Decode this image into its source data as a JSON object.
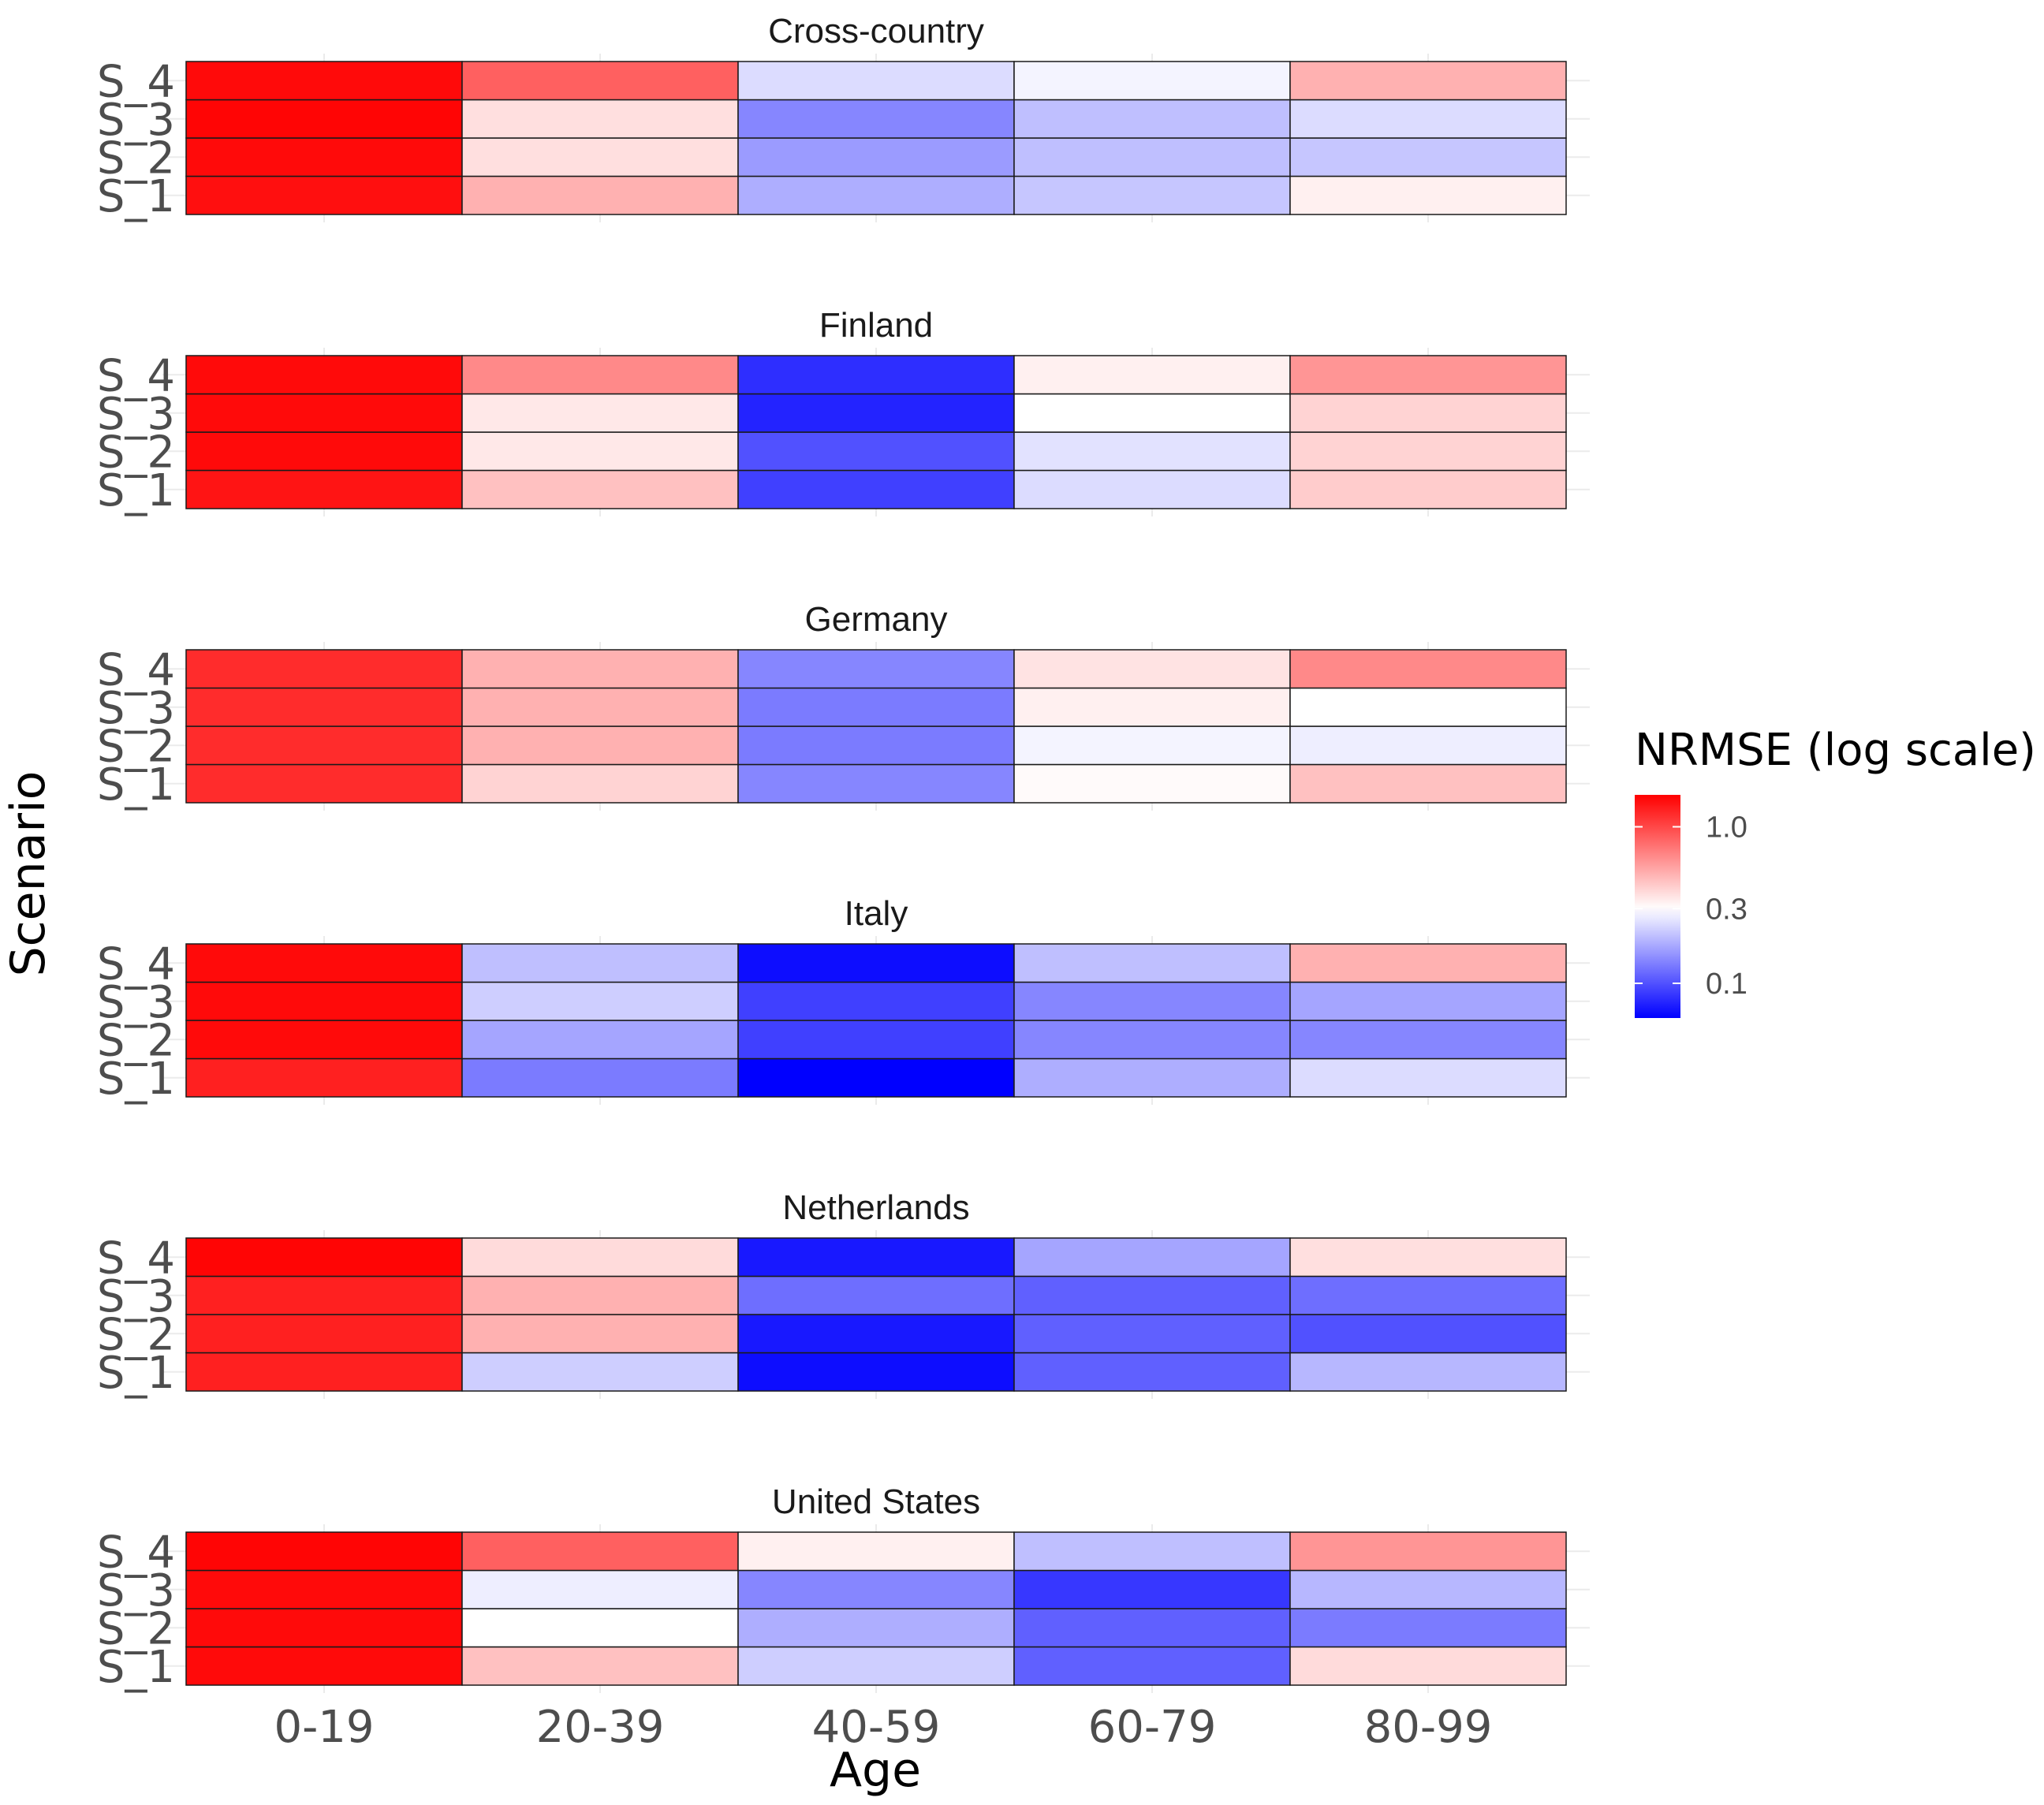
{
  "chart_data": {
    "type": "heatmap",
    "xlabel": "Age",
    "ylabel": "Scenario",
    "x_categories": [
      "0-19",
      "20-39",
      "40-59",
      "60-79",
      "80-99"
    ],
    "y_categories": [
      "S_1",
      "S_2",
      "S_3",
      "S_4"
    ],
    "legend": {
      "title": "NRMSE (log scale)",
      "placement": "right",
      "scale": "log",
      "range": [
        0.06,
        1.6
      ],
      "midpoint": 0.3,
      "ticks": [
        {
          "value": 1.0,
          "label": "1.0"
        },
        {
          "value": 0.3,
          "label": "0.3"
        },
        {
          "value": 0.1,
          "label": "0.1"
        }
      ],
      "colors": {
        "low": "#0000ff",
        "mid": "#ffffff",
        "high": "#ff0000"
      }
    },
    "facets": [
      {
        "title": "Cross-country",
        "values": {
          "S_4": [
            1.5,
            0.85,
            0.24,
            0.28,
            0.5
          ],
          "S_3": [
            1.55,
            0.37,
            0.14,
            0.2,
            0.24
          ],
          "S_2": [
            1.5,
            0.37,
            0.16,
            0.2,
            0.21
          ],
          "S_1": [
            1.45,
            0.5,
            0.18,
            0.21,
            0.33
          ]
        }
      },
      {
        "title": "Finland",
        "values": {
          "S_4": [
            1.5,
            0.65,
            0.08,
            0.33,
            0.6
          ],
          "S_3": [
            1.5,
            0.35,
            0.075,
            0.3,
            0.4
          ],
          "S_2": [
            1.5,
            0.35,
            0.1,
            0.25,
            0.4
          ],
          "S_1": [
            1.4,
            0.45,
            0.09,
            0.24,
            0.42
          ]
        }
      },
      {
        "title": "Germany",
        "values": {
          "S_4": [
            1.2,
            0.5,
            0.14,
            0.36,
            0.65
          ],
          "S_3": [
            1.2,
            0.5,
            0.13,
            0.33,
            0.3
          ],
          "S_2": [
            1.2,
            0.5,
            0.13,
            0.28,
            0.27
          ],
          "S_1": [
            1.2,
            0.4,
            0.14,
            0.31,
            0.45
          ]
        }
      },
      {
        "title": "Italy",
        "values": {
          "S_4": [
            1.5,
            0.2,
            0.065,
            0.2,
            0.5
          ],
          "S_3": [
            1.5,
            0.22,
            0.09,
            0.14,
            0.17
          ],
          "S_2": [
            1.5,
            0.17,
            0.09,
            0.14,
            0.14
          ],
          "S_1": [
            1.3,
            0.13,
            0.06,
            0.18,
            0.24
          ]
        }
      },
      {
        "title": "Netherlands",
        "values": {
          "S_4": [
            1.55,
            0.38,
            0.07,
            0.17,
            0.37
          ],
          "S_3": [
            1.3,
            0.5,
            0.12,
            0.11,
            0.12
          ],
          "S_2": [
            1.3,
            0.5,
            0.07,
            0.11,
            0.1
          ],
          "S_1": [
            1.3,
            0.22,
            0.065,
            0.11,
            0.19
          ]
        }
      },
      {
        "title": "United States",
        "values": {
          "S_4": [
            1.55,
            0.85,
            0.33,
            0.2,
            0.6
          ],
          "S_3": [
            1.5,
            0.27,
            0.14,
            0.085,
            0.19
          ],
          "S_2": [
            1.5,
            0.3,
            0.18,
            0.11,
            0.13
          ],
          "S_1": [
            1.5,
            0.45,
            0.22,
            0.11,
            0.38
          ]
        }
      }
    ]
  }
}
